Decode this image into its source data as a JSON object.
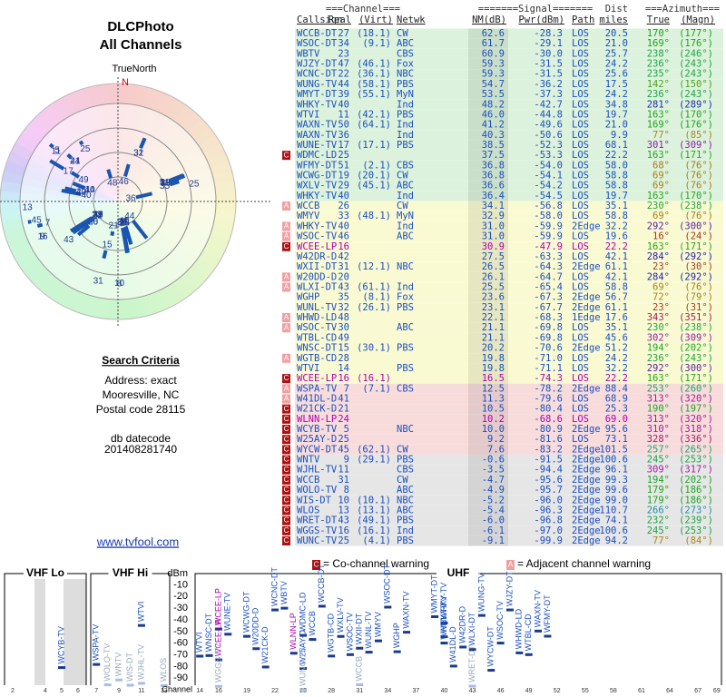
{
  "left": {
    "title": "DLCPhoto",
    "subtitle": "All Channels",
    "north_label": "TrueNorth",
    "north": "N",
    "criteria_heading": "Search Criteria",
    "criteria": [
      "Address: exact",
      "Mooresville, NC",
      "Postal code 28115"
    ],
    "db": [
      "db datecode",
      "201408281740"
    ],
    "link": "www.tvfool.com"
  },
  "table": {
    "header_groups": [
      "===Channel===",
      "=======Signal=======",
      "Dist",
      "===Azimuth==="
    ],
    "columns": [
      "Callsign",
      "Real",
      "(Virt)",
      "Netwk",
      "NM(dB)",
      "Pwr(dBm)",
      "Path",
      "miles",
      "True",
      "(Magn)"
    ],
    "rows": [
      [
        "WCCB-DT",
        "27",
        "(18.1)",
        "CW",
        "62.6",
        "-28.3",
        "LOS",
        "20.5",
        "170°",
        "(177°)"
      ],
      [
        "WSOC-DT",
        "34",
        "(9.1)",
        "ABC",
        "61.7",
        "-29.1",
        "LOS",
        "21.0",
        "169°",
        "(176°)"
      ],
      [
        "WBTV",
        "23",
        null,
        "CBS",
        "60.9",
        "-30.0",
        "LOS",
        "25.7",
        "238°",
        "(246°)"
      ],
      [
        "WJZY-DT",
        "47",
        "(46.1)",
        "Fox",
        "59.3",
        "-31.5",
        "LOS",
        "24.2",
        "236°",
        "(243°)"
      ],
      [
        "WCNC-DT",
        "22",
        "(36.1)",
        "NBC",
        "59.3",
        "-31.5",
        "LOS",
        "25.6",
        "235°",
        "(243°)"
      ],
      [
        "WUNG-TV",
        "44",
        "(58.1)",
        "PBS",
        "54.7",
        "-36.2",
        "LOS",
        "17.5",
        "142°",
        "(150°)"
      ],
      [
        "WMYT-DT",
        "39",
        "(55.1)",
        "MyN",
        "53.5",
        "-37.3",
        "LOS",
        "24.2",
        "236°",
        "(243°)"
      ],
      [
        "WHKY-TV",
        "40",
        null,
        "Ind",
        "48.2",
        "-42.7",
        "LOS",
        "34.8",
        "281°",
        "(289°)"
      ],
      [
        "WTVI",
        "11",
        "(42.1)",
        "PBS",
        "46.0",
        "-44.8",
        "LOS",
        "19.7",
        "163°",
        "(170°)"
      ],
      [
        "WAXN-TV",
        "50",
        "(64.1)",
        "Ind",
        "41.2",
        "-49.6",
        "LOS",
        "21.0",
        "169°",
        "(176°)"
      ],
      [
        "WAXN-TV",
        "36",
        null,
        "Ind",
        "40.3",
        "-50.6",
        "LOS",
        "9.9",
        "77°",
        "(85°)"
      ],
      [
        "WUNE-TV",
        "17",
        "(17.1)",
        "PBS",
        "38.5",
        "-52.3",
        "LOS",
        "68.1",
        "301°",
        "(309°)"
      ],
      [
        "WDMC-LD",
        "25",
        null,
        null,
        "37.5",
        "-53.3",
        "LOS",
        "22.2",
        "163°",
        "(171°)"
      ],
      [
        "WFMY-DT",
        "51",
        "(2.1)",
        "CBS",
        "36.8",
        "-54.0",
        "LOS",
        "58.0",
        "68°",
        "(76°)"
      ],
      [
        "WCWG-DT",
        "19",
        "(20.1)",
        "CW",
        "36.8",
        "-54.1",
        "LOS",
        "58.8",
        "69°",
        "(76°)"
      ],
      [
        "WXLV-TV",
        "29",
        "(45.1)",
        "ABC",
        "36.6",
        "-54.2",
        "LOS",
        "58.8",
        "69°",
        "(76°)"
      ],
      [
        "WHKY-TV",
        "40",
        null,
        "Ind",
        "36.4",
        "-54.5",
        "LOS",
        "19.7",
        "163°",
        "(170°)"
      ],
      [
        "WCCB",
        "26",
        null,
        "CW",
        "34.1",
        "-56.8",
        "LOS",
        "35.1",
        "230°",
        "(238°)"
      ],
      [
        "WMYV",
        "33",
        "(48.1)",
        "MyN",
        "32.9",
        "-58.0",
        "LOS",
        "58.8",
        "69°",
        "(76°)"
      ],
      [
        "WHKY-TV",
        "40",
        null,
        "Ind",
        "31.0",
        "-59.9",
        "2Edge",
        "32.2",
        "292°",
        "(300°)"
      ],
      [
        "WSOC-TV",
        "46",
        null,
        "ABC",
        "31.0",
        "-59.9",
        "LOS",
        "19.6",
        "16°",
        "(24°)"
      ],
      [
        "WCEE-LP",
        "16",
        null,
        null,
        "30.9",
        "-47.9",
        "LOS",
        "22.2",
        "163°",
        "(171°)"
      ],
      [
        "W42DR-D",
        "42",
        null,
        null,
        "27.5",
        "-63.3",
        "LOS",
        "42.1",
        "284°",
        "(292°)"
      ],
      [
        "WXII-DT",
        "31",
        "(12.1)",
        "NBC",
        "26.5",
        "-64.3",
        "2Edge",
        "61.1",
        "23°",
        "(30°)"
      ],
      [
        "W20DD-D",
        "20",
        null,
        null,
        "26.1",
        "-64.7",
        "LOS",
        "42.1",
        "284°",
        "(292°)"
      ],
      [
        "WLXI-DT",
        "43",
        "(61.1)",
        "Ind",
        "25.5",
        "-65.4",
        "LOS",
        "58.8",
        "69°",
        "(76°)"
      ],
      [
        "WGHP",
        "35",
        "(8.1)",
        "Fox",
        "23.6",
        "-67.3",
        "2Edge",
        "56.7",
        "72°",
        "(79°)"
      ],
      [
        "WUNL-TV",
        "32",
        "(26.1)",
        "PBS",
        "23.1",
        "-67.7",
        "2Edge",
        "61.1",
        "23°",
        "(31°)"
      ],
      [
        "WHWD-LD",
        "48",
        null,
        null,
        "22.1",
        "-68.3",
        "1Edge",
        "17.6",
        "343°",
        "(351°)"
      ],
      [
        "WSOC-TV",
        "30",
        null,
        "ABC",
        "21.1",
        "-69.8",
        "LOS",
        "35.1",
        "230°",
        "(238°)"
      ],
      [
        "WTBL-CD",
        "49",
        null,
        null,
        "21.1",
        "-69.8",
        "LOS",
        "45.6",
        "302°",
        "(309°)"
      ],
      [
        "WNSC-DT",
        "15",
        "(30.1)",
        "PBS",
        "20.2",
        "-70.6",
        "2Edge",
        "51.2",
        "194°",
        "(202°)"
      ],
      [
        "WGTB-CD",
        "28",
        null,
        null,
        "19.8",
        "-71.0",
        "LOS",
        "24.2",
        "236°",
        "(243°)"
      ],
      [
        "WTVI",
        "14",
        null,
        "PBS",
        "19.8",
        "-71.1",
        "LOS",
        "32.2",
        "292°",
        "(300°)"
      ],
      [
        "WCEE-LP",
        "16",
        "(16.1)",
        null,
        "16.5",
        "-74.3",
        "LOS",
        "22.2",
        "163°",
        "(171°)"
      ],
      [
        "WSPA-TV",
        "7",
        "(7.1)",
        "CBS",
        "12.5",
        "-78.2",
        "2Edge",
        "88.4",
        "253°",
        "(260°)"
      ],
      [
        "W41DL-D",
        "41",
        null,
        null,
        "11.3",
        "-79.6",
        "LOS",
        "68.9",
        "313°",
        "(320°)"
      ],
      [
        "W21CK-D",
        "21",
        null,
        null,
        "10.5",
        "-80.4",
        "LOS",
        "25.3",
        "190°",
        "(197°)"
      ],
      [
        "WLNN-LP",
        "24",
        null,
        null,
        "10.2",
        "-68.6",
        "LOS",
        "69.0",
        "313°",
        "(320°)"
      ],
      [
        "WCYB-TV",
        "5",
        null,
        "NBC",
        "10.0",
        "-80.9",
        "2Edge",
        "95.6",
        "310°",
        "(318°)"
      ],
      [
        "W25AY-D",
        "25",
        null,
        null,
        "9.2",
        "-81.6",
        "LOS",
        "73.1",
        "328°",
        "(336°)"
      ],
      [
        "WYCW-DT",
        "45",
        "(62.1)",
        "CW",
        "7.6",
        "-83.2",
        "2Edge",
        "101.5",
        "257°",
        "(265°)"
      ],
      [
        "WNTV",
        "9",
        "(29.1)",
        "PBS",
        "-0.6",
        "-91.5",
        "2Edge",
        "100.6",
        "245°",
        "(253°)"
      ],
      [
        "WJHL-TV",
        "11",
        null,
        "CBS",
        "-3.5",
        "-94.4",
        "2Edge",
        "96.1",
        "309°",
        "(317°)"
      ],
      [
        "WCCB",
        "31",
        null,
        "CW",
        "-4.7",
        "-95.6",
        "2Edge",
        "99.3",
        "194°",
        "(202°)"
      ],
      [
        "WOLO-TV",
        "8",
        null,
        "ABC",
        "-4.9",
        "-95.7",
        "2Edge",
        "99.6",
        "179°",
        "(186°)"
      ],
      [
        "WIS-DT",
        "10",
        "(10.1)",
        "NBC",
        "-5.2",
        "-96.0",
        "2Edge",
        "99.0",
        "179°",
        "(186°)"
      ],
      [
        "WLOS",
        "13",
        "(13.1)",
        "ABC",
        "-5.4",
        "-96.3",
        "2Edge",
        "110.7",
        "266°",
        "(273°)"
      ],
      [
        "WRET-DT",
        "43",
        "(49.1)",
        "PBS",
        "-6.0",
        "-96.8",
        "2Edge",
        "74.1",
        "232°",
        "(239°)"
      ],
      [
        "WGGS-TV",
        "16",
        "(16.1)",
        "Ind",
        "-6.1",
        "-97.0",
        "2Edge",
        "100.6",
        "245°",
        "(253°)"
      ],
      [
        "WUNC-TV",
        "25",
        "(4.1)",
        "PBS",
        "-9.1",
        "-99.9",
        "2Edge",
        "94.2",
        "77°",
        "(84°)"
      ]
    ],
    "row_colors": [
      "#dcf2dc",
      "#dcf2dc",
      "#dcf2dc",
      "#dcf2dc",
      "#dcf2dc",
      "#dcf2dc",
      "#dcf2dc",
      "#dcf2dc",
      "#dcf2dc",
      "#dcf2dc",
      "#dcf2dc",
      "#dcf2dc",
      "#dcf2dc",
      "#dcf2dc",
      "#dcf2dc",
      "#dcf2dc",
      "#dcf2dc",
      "#fafad2",
      "#fafad2",
      "#fafad2",
      "#fafad2",
      "#fafad2",
      "#fafad2",
      "#fafad2",
      "#fafad2",
      "#fafad2",
      "#fafad2",
      "#fafad2",
      "#fafad2",
      "#fafad2",
      "#fafad2",
      "#fafad2",
      "#fafad2",
      "#fafad2",
      "#fafad2",
      "#f8dcdc",
      "#f8dcdc",
      "#f8dcdc",
      "#f8dcdc",
      "#f8dcdc",
      "#f8dcdc",
      "#f8dcdc",
      "#e6e6e6",
      "#e6e6e6",
      "#e6e6e6",
      "#e6e6e6",
      "#e6e6e6",
      "#e6e6e6",
      "#e6e6e6",
      "#e6e6e6",
      "#e6e6e6"
    ],
    "warnings": [
      null,
      null,
      null,
      null,
      null,
      null,
      null,
      null,
      null,
      null,
      null,
      null,
      "C",
      null,
      null,
      null,
      null,
      "A",
      null,
      "A",
      "A",
      "C",
      null,
      null,
      "A",
      "A",
      null,
      null,
      "A",
      "A",
      null,
      null,
      "A",
      null,
      "C",
      "A",
      "A",
      "C",
      "C",
      "C",
      "C",
      "C",
      "C",
      "C",
      "C",
      "C",
      "C",
      "C",
      "C",
      "C",
      "C"
    ]
  },
  "legend": {
    "co": "C",
    "co_text": "= Co-channel warning",
    "adj": "A",
    "adj_text": "= Adjacent channel warning"
  },
  "spectrum": {
    "ylabel": "dBm",
    "xlabel": "Channel",
    "ylim": [
      -5,
      -96
    ],
    "yticks": [
      -10,
      -20,
      -30,
      -40,
      -50,
      -60,
      -70,
      -80,
      -90
    ],
    "panels": [
      {
        "label": "VHF Lo",
        "xlim": [
          1.5,
          6.5
        ],
        "xticks": [
          2,
          4,
          5,
          6
        ]
      },
      {
        "label": "VHF Hi",
        "xlim": [
          6.5,
          13.5
        ],
        "xticks": [
          7,
          9,
          11,
          13
        ]
      },
      {
        "label": "UHF",
        "xlim": [
          13.5,
          69.5
        ],
        "xticks": [
          14,
          16,
          19,
          22,
          25,
          28,
          31,
          34,
          37,
          40,
          43,
          46,
          49,
          52,
          55,
          58,
          61,
          64,
          67,
          69
        ]
      }
    ]
  }
}
